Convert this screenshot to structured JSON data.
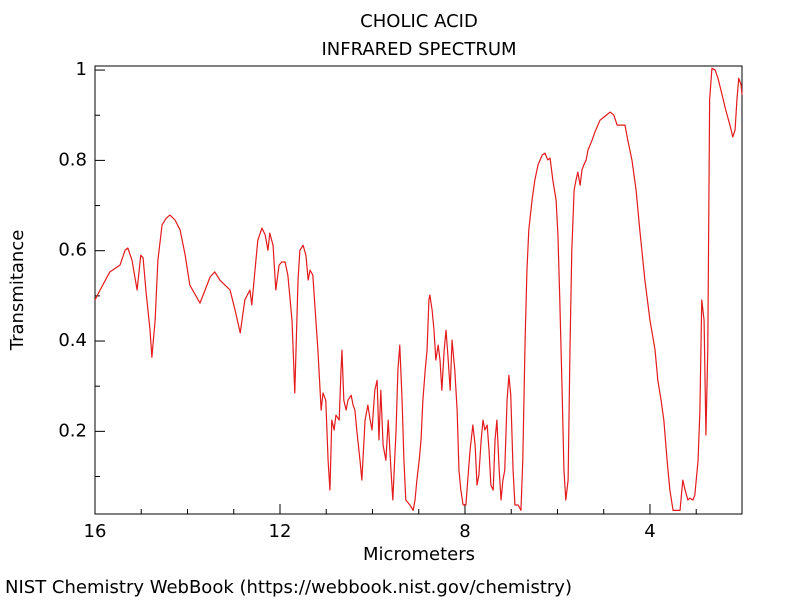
{
  "chart_data": {
    "type": "line",
    "title": "CHOLIC ACID",
    "subtitle": "INFRARED SPECTRUM",
    "x_label": "Micrometers",
    "y_label": "Transmitance",
    "source": "NIST Chemistry WebBook (https://webbook.nist.gov/chemistry)",
    "color": "#e41a1c",
    "xlim": [
      16,
      2.01
    ],
    "ylim": [
      0.017,
      1.009
    ],
    "xticks": [
      16,
      12,
      8,
      4
    ],
    "yticks": [
      0.2,
      0.4,
      0.6,
      0.8,
      1
    ],
    "xminorticks": [
      15,
      14,
      13,
      11,
      10,
      9,
      7,
      6,
      5,
      3
    ],
    "yminorticks": [
      0.1,
      0.3,
      0.5,
      0.7,
      0.9
    ],
    "x": [
      16,
      15.89,
      15.68,
      15.46,
      15.35,
      15.29,
      15.2,
      15.09,
      15.01,
      14.96,
      14.9,
      14.81,
      14.77,
      14.7,
      14.64,
      14.55,
      14.46,
      14.38,
      14.27,
      14.16,
      14.05,
      13.95,
      13.73,
      13.62,
      13.51,
      13.41,
      13.3,
      13.19,
      13.08,
      12.97,
      12.86,
      12.76,
      12.65,
      12.61,
      12.54,
      12.48,
      12.39,
      12.32,
      12.26,
      12.22,
      12.15,
      12.09,
      12.02,
      11.96,
      11.89,
      11.83,
      11.74,
      11.68,
      11.61,
      11.57,
      11.5,
      11.44,
      11.39,
      11.35,
      11.29,
      11.18,
      11.11,
      11.07,
      11.01,
      10.96,
      10.92,
      10.88,
      10.83,
      10.79,
      10.72,
      10.68,
      10.66,
      10.62,
      10.57,
      10.53,
      10.46,
      10.42,
      10.38,
      10.34,
      10.27,
      10.23,
      10.16,
      10.1,
      10.05,
      10.01,
      9.95,
      9.9,
      9.86,
      9.82,
      9.77,
      9.71,
      9.66,
      9.6,
      9.56,
      9.49,
      9.45,
      9.41,
      9.36,
      9.32,
      9.28,
      9.19,
      9.12,
      9.08,
      9.04,
      8.99,
      8.95,
      8.91,
      8.86,
      8.82,
      8.78,
      8.76,
      8.71,
      8.67,
      8.63,
      8.58,
      8.54,
      8.5,
      8.45,
      8.41,
      8.37,
      8.32,
      8.28,
      8.22,
      8.17,
      8.13,
      8.09,
      8.04,
      7.98,
      7.94,
      7.89,
      7.83,
      7.78,
      7.74,
      7.7,
      7.65,
      7.61,
      7.57,
      7.52,
      7.48,
      7.44,
      7.39,
      7.35,
      7.31,
      7.26,
      7.22,
      7.18,
      7.14,
      7.09,
      7.05,
      7.01,
      6.96,
      6.92,
      6.85,
      6.79,
      6.75,
      6.7,
      6.66,
      6.62,
      6.55,
      6.49,
      6.42,
      6.33,
      6.27,
      6.21,
      6.16,
      6.1,
      6.03,
      5.99,
      5.95,
      5.9,
      5.86,
      5.82,
      5.77,
      5.73,
      5.69,
      5.64,
      5.6,
      5.56,
      5.51,
      5.47,
      5.43,
      5.38,
      5.34,
      5.25,
      5.19,
      5.08,
      4.97,
      4.86,
      4.78,
      4.71,
      4.65,
      4.54,
      4.48,
      4.39,
      4.3,
      4.22,
      4.11,
      4,
      3.89,
      3.83,
      3.76,
      3.7,
      3.63,
      3.57,
      3.5,
      3.44,
      3.35,
      3.29,
      3.24,
      3.18,
      3.14,
      3.07,
      3.03,
      2.96,
      2.92,
      2.88,
      2.83,
      2.79,
      2.75,
      2.71,
      2.66,
      2.59,
      2.53,
      2.44,
      2.36,
      2.27,
      2.21,
      2.16,
      2.12,
      2.08,
      2.03,
      2.01
    ],
    "values": [
      0.491,
      0.513,
      0.553,
      0.568,
      0.601,
      0.606,
      0.579,
      0.513,
      0.59,
      0.584,
      0.513,
      0.424,
      0.364,
      0.446,
      0.579,
      0.657,
      0.672,
      0.679,
      0.668,
      0.646,
      0.59,
      0.524,
      0.484,
      0.513,
      0.542,
      0.553,
      0.535,
      0.524,
      0.513,
      0.468,
      0.418,
      0.491,
      0.513,
      0.48,
      0.557,
      0.623,
      0.65,
      0.635,
      0.601,
      0.639,
      0.612,
      0.513,
      0.568,
      0.575,
      0.575,
      0.546,
      0.446,
      0.285,
      0.535,
      0.601,
      0.612,
      0.59,
      0.535,
      0.557,
      0.546,
      0.38,
      0.247,
      0.285,
      0.269,
      0.136,
      0.07,
      0.225,
      0.203,
      0.236,
      0.225,
      0.336,
      0.38,
      0.269,
      0.247,
      0.269,
      0.28,
      0.258,
      0.247,
      0.203,
      0.136,
      0.092,
      0.225,
      0.258,
      0.225,
      0.203,
      0.291,
      0.313,
      0.181,
      0.291,
      0.169,
      0.136,
      0.225,
      0.114,
      0.048,
      0.203,
      0.336,
      0.391,
      0.269,
      0.136,
      0.048,
      0.037,
      0.025,
      0.048,
      0.092,
      0.136,
      0.181,
      0.269,
      0.336,
      0.38,
      0.491,
      0.502,
      0.468,
      0.424,
      0.358,
      0.391,
      0.358,
      0.291,
      0.38,
      0.424,
      0.369,
      0.291,
      0.402,
      0.336,
      0.247,
      0.114,
      0.07,
      0.037,
      0.037,
      0.092,
      0.158,
      0.214,
      0.169,
      0.081,
      0.103,
      0.181,
      0.225,
      0.203,
      0.214,
      0.158,
      0.081,
      0.07,
      0.181,
      0.225,
      0.114,
      0.048,
      0.092,
      0.114,
      0.269,
      0.324,
      0.28,
      0.114,
      0.037,
      0.037,
      0.025,
      0.136,
      0.402,
      0.557,
      0.646,
      0.712,
      0.756,
      0.79,
      0.812,
      0.816,
      0.801,
      0.805,
      0.756,
      0.712,
      0.635,
      0.491,
      0.291,
      0.114,
      0.048,
      0.092,
      0.38,
      0.601,
      0.734,
      0.756,
      0.774,
      0.745,
      0.779,
      0.79,
      0.801,
      0.823,
      0.845,
      0.863,
      0.889,
      0.898,
      0.907,
      0.9,
      0.878,
      0.878,
      0.878,
      0.845,
      0.801,
      0.734,
      0.646,
      0.535,
      0.446,
      0.38,
      0.313,
      0.269,
      0.225,
      0.136,
      0.07,
      0.025,
      0.025,
      0.025,
      0.092,
      0.07,
      0.048,
      0.052,
      0.048,
      0.059,
      0.136,
      0.247,
      0.491,
      0.446,
      0.192,
      0.38,
      0.934,
      1.004,
      1,
      0.982,
      0.945,
      0.911,
      0.878,
      0.852,
      0.867,
      0.934,
      0.982,
      0.967,
      0.945
    ]
  }
}
